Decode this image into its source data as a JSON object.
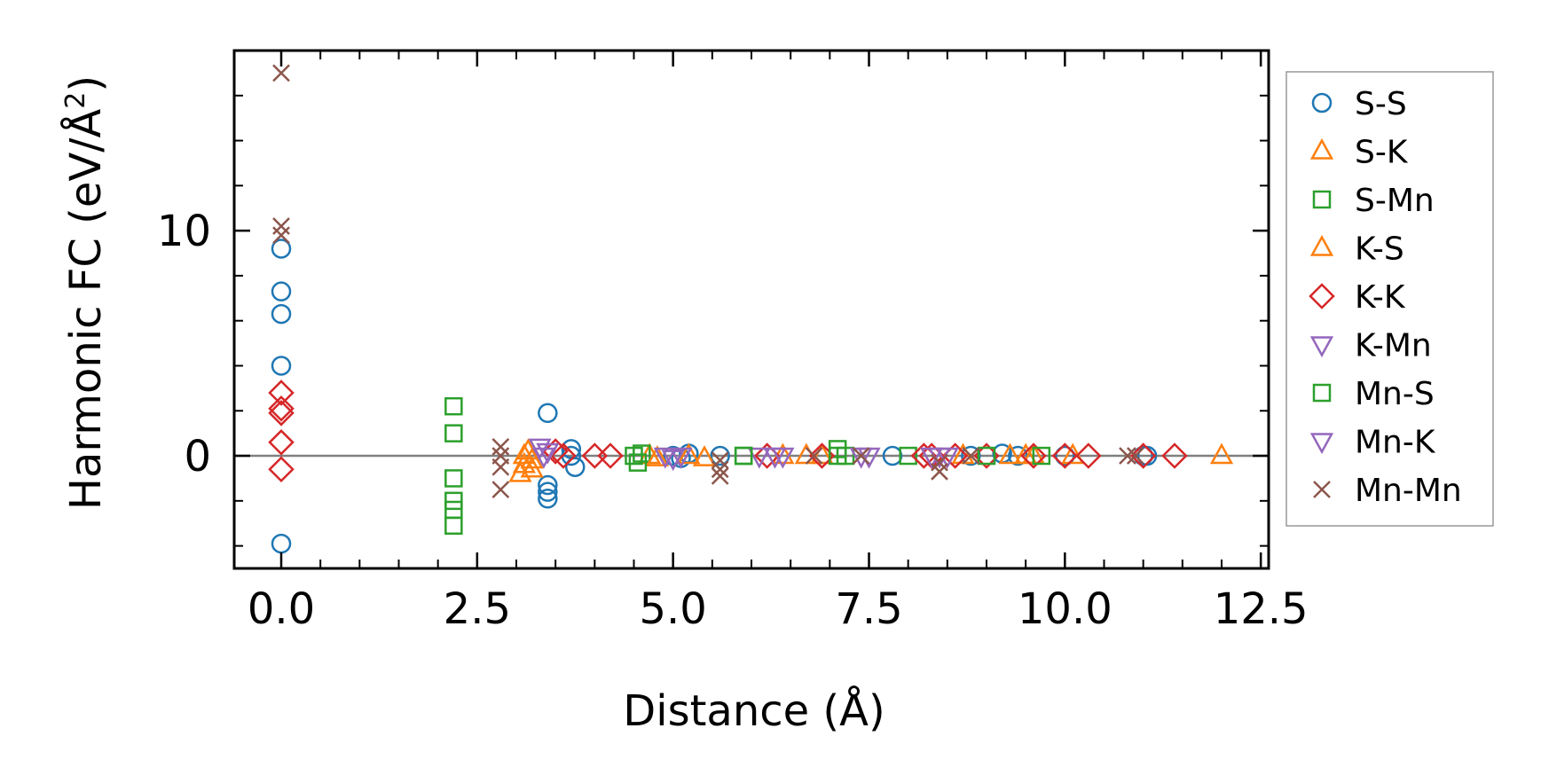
{
  "chart_data": {
    "type": "scatter",
    "title": "",
    "xlabel": "Distance (Å)",
    "ylabel_main": "Harmonic FC (eV/Å",
    "ylabel_sup": "2",
    "ylabel_close": ")",
    "xlim": [
      -0.6,
      12.6
    ],
    "ylim": [
      -5,
      18
    ],
    "xticks": [
      0.0,
      2.5,
      5.0,
      7.5,
      10.0,
      12.5
    ],
    "xtick_labels": [
      "0.0",
      "2.5",
      "5.0",
      "7.5",
      "10.0",
      "12.5"
    ],
    "yticks": [
      0,
      10
    ],
    "ytick_labels": [
      "0",
      "10"
    ],
    "grid": false,
    "zero_line": true,
    "legend_position": "outside-right",
    "series": [
      {
        "name": "S-S",
        "marker": "circle",
        "color": "#1f77b4",
        "points": [
          [
            0,
            9.2
          ],
          [
            0,
            7.3
          ],
          [
            0,
            6.3
          ],
          [
            0,
            4.0
          ],
          [
            0,
            -3.9
          ],
          [
            3.4,
            1.9
          ],
          [
            3.4,
            -1.3
          ],
          [
            3.4,
            -1.6
          ],
          [
            3.4,
            -1.9
          ],
          [
            3.7,
            0.3
          ],
          [
            3.7,
            0.0
          ],
          [
            3.75,
            -0.5
          ],
          [
            5.0,
            0.0
          ],
          [
            5.1,
            -0.1
          ],
          [
            5.2,
            0.1
          ],
          [
            5.6,
            0.0
          ],
          [
            7.8,
            0.0
          ],
          [
            8.8,
            0.0
          ],
          [
            9.2,
            0.1
          ],
          [
            9.4,
            0.0
          ],
          [
            10.0,
            0.0
          ],
          [
            11.0,
            0.0
          ],
          [
            11.05,
            0.0
          ]
        ]
      },
      {
        "name": "S-K",
        "marker": "triangle-up",
        "color": "#ff7f0e",
        "points": [
          [
            3.05,
            -0.8
          ],
          [
            3.1,
            -0.4
          ],
          [
            3.15,
            0.2
          ],
          [
            3.2,
            -0.2
          ],
          [
            4.7,
            0.0
          ],
          [
            5.2,
            0.0
          ],
          [
            5.4,
            -0.1
          ],
          [
            6.4,
            0.0
          ],
          [
            6.7,
            0.0
          ],
          [
            9.3,
            0.0
          ],
          [
            9.5,
            0.0
          ],
          [
            10.1,
            0.0
          ],
          [
            12.0,
            0.0
          ]
        ]
      },
      {
        "name": "S-Mn",
        "marker": "square",
        "color": "#2ca02c",
        "points": [
          [
            2.2,
            2.2
          ],
          [
            2.2,
            1.0
          ],
          [
            2.2,
            -1.0
          ],
          [
            2.2,
            -2.0
          ],
          [
            2.2,
            -2.4
          ],
          [
            2.2,
            -3.1
          ],
          [
            4.5,
            0.0
          ],
          [
            4.6,
            0.1
          ],
          [
            5.9,
            0.0
          ],
          [
            7.1,
            0.3
          ],
          [
            7.2,
            0.0
          ],
          [
            8.0,
            0.0
          ]
        ]
      },
      {
        "name": "K-S",
        "marker": "triangle-up",
        "color": "#ff7f0e",
        "points": [
          [
            3.1,
            0.0
          ],
          [
            3.2,
            -0.6
          ],
          [
            4.8,
            -0.1
          ],
          [
            6.9,
            0.0
          ],
          [
            8.7,
            0.0
          ],
          [
            9.6,
            0.0
          ]
        ]
      },
      {
        "name": "K-K",
        "marker": "diamond",
        "color": "#d62728",
        "points": [
          [
            0,
            2.8
          ],
          [
            0,
            2.1
          ],
          [
            0,
            1.9
          ],
          [
            0,
            0.6
          ],
          [
            0,
            -0.6
          ],
          [
            3.5,
            0.2
          ],
          [
            3.6,
            0.0
          ],
          [
            4.0,
            0.0
          ],
          [
            4.2,
            0.0
          ],
          [
            6.2,
            0.0
          ],
          [
            6.9,
            0.0
          ],
          [
            8.2,
            0.0
          ],
          [
            8.3,
            0.0
          ],
          [
            8.6,
            0.0
          ],
          [
            9.0,
            0.0
          ],
          [
            9.6,
            0.0
          ],
          [
            10.0,
            0.0
          ],
          [
            10.3,
            0.0
          ],
          [
            11.0,
            0.0
          ],
          [
            11.4,
            0.0
          ]
        ]
      },
      {
        "name": "K-Mn",
        "marker": "triangle-down",
        "color": "#9467bd",
        "points": [
          [
            3.3,
            0.4
          ],
          [
            3.35,
            0.0
          ],
          [
            4.9,
            0.0
          ],
          [
            5.0,
            -0.1
          ],
          [
            6.1,
            0.0
          ],
          [
            6.4,
            0.0
          ],
          [
            7.5,
            0.0
          ],
          [
            8.4,
            0.0
          ],
          [
            8.5,
            0.0
          ]
        ]
      },
      {
        "name": "Mn-S",
        "marker": "square",
        "color": "#2ca02c",
        "points": [
          [
            4.55,
            -0.3
          ],
          [
            5.9,
            0.0
          ],
          [
            7.1,
            0.0
          ],
          [
            9.0,
            0.0
          ],
          [
            9.7,
            0.0
          ]
        ]
      },
      {
        "name": "Mn-K",
        "marker": "triangle-down",
        "color": "#9467bd",
        "points": [
          [
            3.4,
            0.2
          ],
          [
            5.1,
            0.0
          ],
          [
            6.3,
            0.0
          ],
          [
            7.4,
            0.0
          ],
          [
            8.3,
            0.0
          ]
        ]
      },
      {
        "name": "Mn-Mn",
        "marker": "x",
        "color": "#8c564b",
        "points": [
          [
            0,
            17.0
          ],
          [
            0,
            10.2
          ],
          [
            0,
            9.8
          ],
          [
            2.8,
            0.4
          ],
          [
            2.8,
            0.0
          ],
          [
            2.8,
            -0.5
          ],
          [
            2.8,
            -1.5
          ],
          [
            5.6,
            -0.2
          ],
          [
            5.6,
            -0.6
          ],
          [
            5.6,
            -0.9
          ],
          [
            6.8,
            0.0
          ],
          [
            7.4,
            0.0
          ],
          [
            8.4,
            -0.3
          ],
          [
            8.4,
            -0.7
          ],
          [
            8.8,
            0.0
          ],
          [
            10.8,
            0.0
          ],
          [
            10.9,
            0.0
          ]
        ]
      }
    ]
  }
}
